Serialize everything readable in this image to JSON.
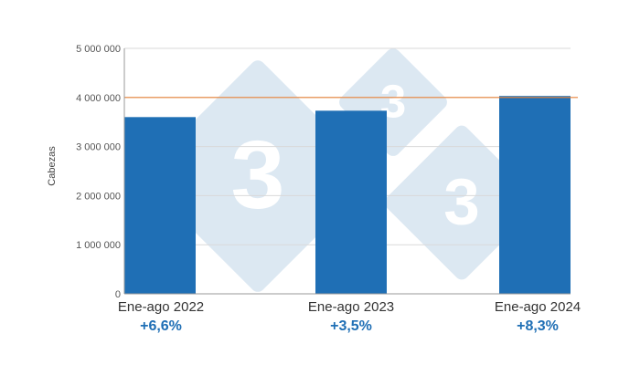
{
  "chart_data": {
    "type": "bar",
    "categories": [
      "Ene-ago 2022",
      "Ene-ago 2023",
      "Ene-ago 2024"
    ],
    "values": [
      3600000,
      3730000,
      4030000
    ],
    "changes": [
      "+6,6%",
      "+3,5%",
      "+8,3%"
    ],
    "ylabel": "Cabezas",
    "ylim": [
      0,
      5000000
    ],
    "yticks": [
      0,
      1000000,
      2000000,
      3000000,
      4000000,
      5000000
    ],
    "ytick_labels": [
      "0",
      "1 000 000",
      "2 000 000",
      "3 000 000",
      "4 000 000",
      "5 000 000"
    ],
    "reference_line": 4000000,
    "grid": true,
    "legend": "none"
  },
  "watermark": {
    "glyph": "3"
  },
  "colors": {
    "bar": "#1f6fb5",
    "reference_line": "#e8833a",
    "change_text": "#1f6fb5",
    "grid": "#d9d9d9",
    "watermark": "#dce8f2"
  }
}
